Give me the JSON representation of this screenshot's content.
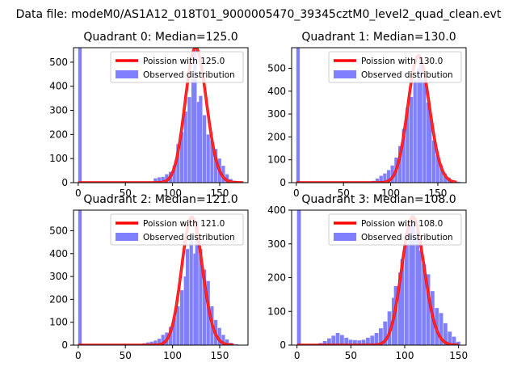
{
  "figure": {
    "suptitle": "Data file: modeM0/AS1A12_018T01_9000005470_39345cztM0_level2_quad_clean.evt"
  },
  "colors": {
    "hist_fill": "#8080ff",
    "curve": "#ff0000",
    "curve_alpha_overlay": "#ff8080",
    "axes": "#000000",
    "legend_border": "#cccccc"
  },
  "chart_data": [
    {
      "type": "bar",
      "title": "Quadrant 0: Median=125.0",
      "xlim": [
        -5,
        180
      ],
      "ylim": [
        0,
        560
      ],
      "xticks": [
        0,
        50,
        100,
        150
      ],
      "yticks": [
        0,
        100,
        200,
        300,
        400,
        500
      ],
      "legend": {
        "placement": "top-right",
        "entries": [
          "Poission with 125.0",
          "Observed distribution"
        ]
      },
      "series": [
        {
          "name": "Observed distribution",
          "kind": "hist",
          "bin_width": 3.6,
          "bins": [
            [
              0,
              560
            ],
            [
              72,
              5
            ],
            [
              80,
              18
            ],
            [
              84,
              22
            ],
            [
              88,
              24
            ],
            [
              92,
              35
            ],
            [
              96,
              45
            ],
            [
              100,
              70
            ],
            [
              104,
              160
            ],
            [
              108,
              210
            ],
            [
              112,
              295
            ],
            [
              116,
              355
            ],
            [
              120,
              430
            ],
            [
              122,
              550
            ],
            [
              126,
              335
            ],
            [
              128,
              360
            ],
            [
              132,
              280
            ],
            [
              136,
              200
            ],
            [
              140,
              175
            ],
            [
              144,
              140
            ],
            [
              148,
              100
            ],
            [
              152,
              70
            ],
            [
              156,
              35
            ],
            [
              160,
              15
            ],
            [
              164,
              8
            ],
            [
              170,
              3
            ]
          ]
        },
        {
          "name": "Poission with 125.0",
          "kind": "poisson",
          "mean": 125.0,
          "scale": 560,
          "x_range": [
            0,
            175
          ]
        }
      ]
    },
    {
      "type": "bar",
      "title": "Quadrant 1: Median=130.0",
      "xlim": [
        -5,
        180
      ],
      "ylim": [
        0,
        590
      ],
      "xticks": [
        0,
        50,
        100,
        150
      ],
      "yticks": [
        0,
        100,
        200,
        300,
        400,
        500
      ],
      "legend": {
        "placement": "top-right",
        "entries": [
          "Poission with 130.0",
          "Observed distribution"
        ]
      },
      "series": [
        {
          "name": "Observed distribution",
          "kind": "hist",
          "bin_width": 3.6,
          "bins": [
            [
              0,
              590
            ],
            [
              80,
              8
            ],
            [
              84,
              18
            ],
            [
              88,
              30
            ],
            [
              92,
              40
            ],
            [
              96,
              55
            ],
            [
              100,
              75
            ],
            [
              104,
              110
            ],
            [
              108,
              160
            ],
            [
              112,
              235
            ],
            [
              116,
              330
            ],
            [
              120,
              375
            ],
            [
              124,
              450
            ],
            [
              128,
              500
            ],
            [
              130,
              550
            ],
            [
              134,
              450
            ],
            [
              138,
              350
            ],
            [
              140,
              275
            ],
            [
              144,
              185
            ],
            [
              148,
              120
            ],
            [
              152,
              75
            ],
            [
              156,
              40
            ],
            [
              160,
              22
            ],
            [
              164,
              10
            ],
            [
              170,
              4
            ]
          ]
        },
        {
          "name": "Poission with 130.0",
          "kind": "poisson",
          "mean": 130.0,
          "scale": 555,
          "x_range": [
            0,
            170
          ]
        }
      ]
    },
    {
      "type": "bar",
      "title": "Quadrant 2: Median=121.0",
      "xlim": [
        -5,
        180
      ],
      "ylim": [
        0,
        590
      ],
      "xticks": [
        0,
        50,
        100,
        150
      ],
      "yticks": [
        0,
        100,
        200,
        300,
        400,
        500
      ],
      "legend": {
        "placement": "top-right",
        "entries": [
          "Poission with 121.0",
          "Observed distribution"
        ]
      },
      "series": [
        {
          "name": "Observed distribution",
          "kind": "hist",
          "bin_width": 3.6,
          "bins": [
            [
              0,
              590
            ],
            [
              68,
              8
            ],
            [
              72,
              12
            ],
            [
              76,
              15
            ],
            [
              80,
              20
            ],
            [
              84,
              28
            ],
            [
              88,
              45
            ],
            [
              92,
              55
            ],
            [
              96,
              80
            ],
            [
              100,
              120
            ],
            [
              104,
              170
            ],
            [
              108,
              240
            ],
            [
              112,
              300
            ],
            [
              114,
              420
            ],
            [
              118,
              485
            ],
            [
              122,
              400
            ],
            [
              124,
              545
            ],
            [
              128,
              420
            ],
            [
              132,
              330
            ],
            [
              136,
              280
            ],
            [
              140,
              170
            ],
            [
              144,
              110
            ],
            [
              148,
              75
            ],
            [
              152,
              45
            ],
            [
              156,
              25
            ],
            [
              160,
              10
            ],
            [
              166,
              4
            ]
          ]
        },
        {
          "name": "Poission with 121.0",
          "kind": "poisson",
          "mean": 121.0,
          "scale": 560,
          "x_range": [
            0,
            165
          ]
        }
      ]
    },
    {
      "type": "bar",
      "title": "Quadrant 3: Median=108.0",
      "xlim": [
        -5,
        157
      ],
      "ylim": [
        0,
        400
      ],
      "xticks": [
        0,
        50,
        100,
        150
      ],
      "yticks": [
        0,
        100,
        200,
        300,
        400
      ],
      "legend": {
        "placement": "top-right",
        "entries": [
          "Poission with 108.0",
          "Observed distribution"
        ]
      },
      "series": [
        {
          "name": "Observed distribution",
          "kind": "hist",
          "bin_width": 3.6,
          "bins": [
            [
              0,
              400
            ],
            [
              20,
              6
            ],
            [
              24,
              12
            ],
            [
              28,
              20
            ],
            [
              32,
              28
            ],
            [
              36,
              36
            ],
            [
              40,
              30
            ],
            [
              44,
              22
            ],
            [
              48,
              16
            ],
            [
              52,
              15
            ],
            [
              56,
              14
            ],
            [
              60,
              16
            ],
            [
              64,
              22
            ],
            [
              68,
              28
            ],
            [
              72,
              36
            ],
            [
              76,
              50
            ],
            [
              80,
              70
            ],
            [
              84,
              100
            ],
            [
              88,
              140
            ],
            [
              90,
              175
            ],
            [
              94,
              215
            ],
            [
              96,
              255
            ],
            [
              100,
              300
            ],
            [
              104,
              360
            ],
            [
              106,
              385
            ],
            [
              110,
              340
            ],
            [
              112,
              280
            ],
            [
              116,
              240
            ],
            [
              120,
              210
            ],
            [
              124,
              160
            ],
            [
              128,
              110
            ],
            [
              132,
              95
            ],
            [
              136,
              65
            ],
            [
              140,
              40
            ],
            [
              144,
              25
            ],
            [
              148,
              10
            ]
          ]
        },
        {
          "name": "Poission with 108.0",
          "kind": "poisson",
          "mean": 108.0,
          "scale": 380,
          "x_range": [
            0,
            150
          ]
        }
      ]
    }
  ]
}
